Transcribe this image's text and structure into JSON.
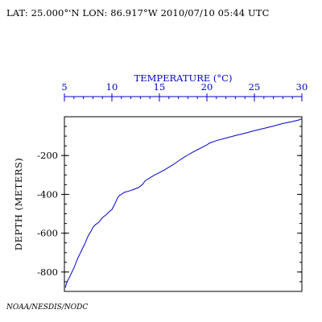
{
  "header": {
    "location_time": "LAT: 25.000°'N LON: 86.917°W 2010/07/10 05:44 UTC"
  },
  "footer": {
    "credit": "NOAA/NESDIS/NODC"
  },
  "colors": {
    "profile": "#0000cc",
    "temperature_axis": "#0000cc",
    "depth_axis": "#000000"
  },
  "chart_data": {
    "type": "line",
    "title": "",
    "xlabel": "TEMPERATURE (°C)",
    "ylabel": "DEPTH (METERS)",
    "xlim": [
      5,
      30
    ],
    "ylim": [
      0,
      -900
    ],
    "x_axis_position": "top",
    "x_ticks": [
      5,
      10,
      15,
      20,
      25,
      30
    ],
    "y_ticks": [
      -200,
      -400,
      -600,
      -800
    ],
    "x_minor_step": 1,
    "y_minor_step": 50,
    "grid": false,
    "legend": "none",
    "series": [
      {
        "x": [
          30.0,
          29.8,
          29.0,
          28.0,
          27.0,
          26.0,
          25.0,
          24.0,
          23.0,
          22.0,
          21.0,
          20.3,
          20.0,
          19.5,
          19.0,
          18.5,
          18.0,
          17.5,
          17.0,
          16.5,
          16.0,
          15.5,
          15.0,
          14.5,
          14.0,
          13.5,
          13.2,
          12.8,
          12.3,
          11.8,
          11.3,
          11.0,
          10.8,
          10.6,
          10.4,
          10.2,
          10.0,
          9.7,
          9.4,
          9.0,
          8.6,
          8.3,
          8.0,
          7.8,
          7.6,
          7.4,
          7.2,
          7.0,
          6.8,
          6.6,
          6.4,
          6.2,
          6.0,
          5.8,
          5.6,
          5.4,
          5.2,
          5.1
        ],
        "y": [
          -10,
          -15,
          -25,
          -35,
          -48,
          -60,
          -72,
          -85,
          -97,
          -110,
          -123,
          -135,
          -145,
          -158,
          -170,
          -183,
          -197,
          -212,
          -228,
          -245,
          -260,
          -275,
          -288,
          -300,
          -315,
          -330,
          -350,
          -365,
          -375,
          -383,
          -390,
          -400,
          -405,
          -418,
          -440,
          -460,
          -478,
          -490,
          -505,
          -520,
          -545,
          -555,
          -570,
          -590,
          -605,
          -625,
          -650,
          -670,
          -690,
          -710,
          -730,
          -755,
          -780,
          -800,
          -820,
          -840,
          -860,
          -880
        ]
      }
    ]
  }
}
